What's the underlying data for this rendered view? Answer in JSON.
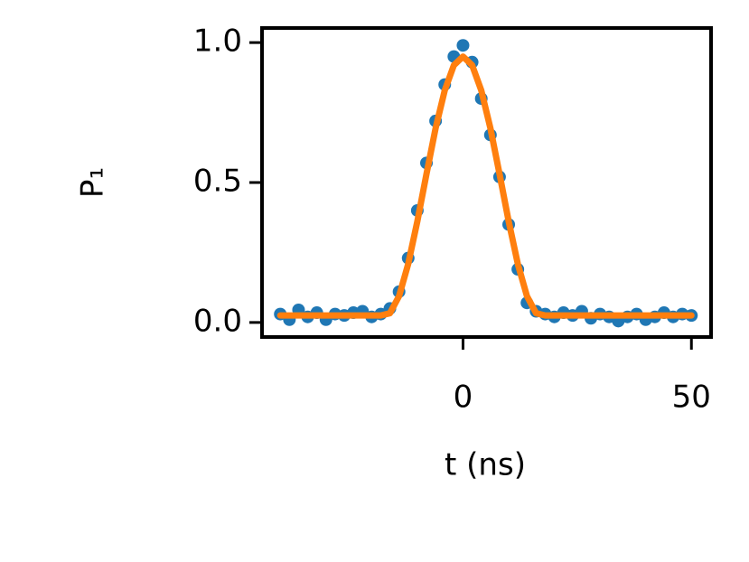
{
  "chart_data": {
    "type": "scatter",
    "xlabel": "t (ns)",
    "ylabel": "P₁",
    "xlim": [
      -44,
      54.3
    ],
    "ylim": [
      -0.052,
      1.052
    ],
    "xticks": [
      0,
      50
    ],
    "yticks": [
      {
        "value": 0,
        "label": "0.0"
      },
      {
        "value": 0.5,
        "label": "0.5"
      },
      {
        "value": 1,
        "label": "1.0"
      }
    ],
    "series": [
      {
        "style": "dots",
        "color": "#1f77b4",
        "x": [
          -40,
          -38,
          -36,
          -34,
          -32,
          -30,
          -28,
          -26,
          -24,
          -22,
          -20,
          -18,
          -16,
          -14,
          -12,
          -10,
          -8,
          -6,
          -4,
          -2,
          0,
          2,
          4,
          6,
          8,
          10,
          12,
          14,
          16,
          18,
          20,
          22,
          24,
          26,
          28,
          30,
          32,
          34,
          36,
          38,
          40,
          42,
          44,
          46,
          48,
          50
        ],
        "values": [
          0.03,
          0.01,
          0.045,
          0.02,
          0.035,
          0.01,
          0.03,
          0.025,
          0.035,
          0.04,
          0.02,
          0.03,
          0.05,
          0.11,
          0.23,
          0.4,
          0.57,
          0.72,
          0.85,
          0.95,
          0.99,
          0.93,
          0.8,
          0.67,
          0.52,
          0.35,
          0.19,
          0.07,
          0.04,
          0.03,
          0.02,
          0.035,
          0.025,
          0.04,
          0.015,
          0.03,
          0.02,
          0.005,
          0.02,
          0.03,
          0.01,
          0.02,
          0.035,
          0.02,
          0.03,
          0.025
        ]
      },
      {
        "style": "line",
        "color": "#ff7f0e",
        "x": [
          -40,
          -38,
          -36,
          -34,
          -32,
          -30,
          -28,
          -26,
          -24,
          -22,
          -20,
          -18,
          -16,
          -14,
          -12,
          -10,
          -8,
          -6,
          -4,
          -2,
          0,
          2,
          4,
          6,
          8,
          10,
          12,
          14,
          16,
          18,
          20,
          22,
          24,
          26,
          28,
          30,
          32,
          34,
          36,
          38,
          40,
          42,
          44,
          46,
          48,
          50
        ],
        "values": [
          0.025,
          0.025,
          0.025,
          0.025,
          0.025,
          0.025,
          0.025,
          0.025,
          0.025,
          0.025,
          0.025,
          0.025,
          0.033,
          0.094,
          0.209,
          0.361,
          0.53,
          0.694,
          0.829,
          0.919,
          0.95,
          0.919,
          0.829,
          0.694,
          0.53,
          0.361,
          0.209,
          0.094,
          0.033,
          0.025,
          0.025,
          0.025,
          0.025,
          0.025,
          0.025,
          0.025,
          0.025,
          0.025,
          0.025,
          0.025,
          0.025,
          0.025,
          0.025,
          0.025,
          0.025,
          0.025
        ]
      }
    ]
  }
}
